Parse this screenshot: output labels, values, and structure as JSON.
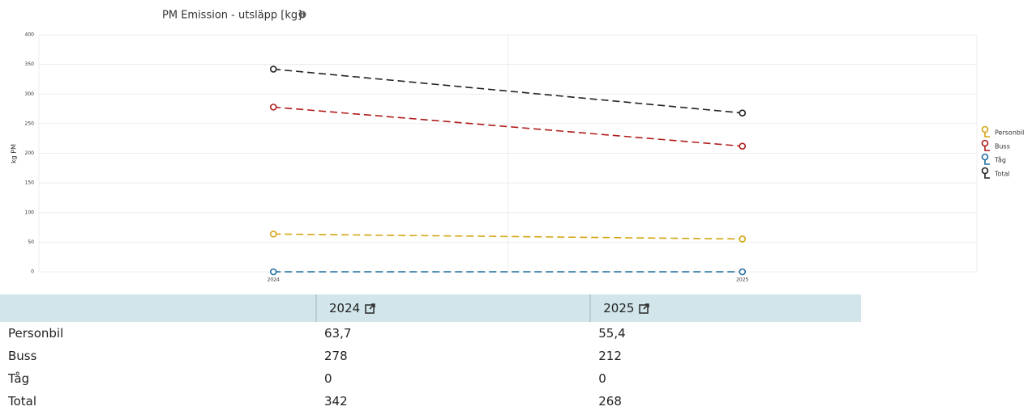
{
  "chart_data": {
    "type": "line",
    "title": "PM Emission - utsläpp [kg]",
    "ylabel": "kg PM",
    "categories": [
      "2024",
      "2025"
    ],
    "series": [
      {
        "name": "Personbil",
        "color": "#d4a514",
        "values": [
          63.7,
          55.4
        ]
      },
      {
        "name": "Buss",
        "color": "#b01c1c",
        "values": [
          278,
          212
        ]
      },
      {
        "name": "Tåg",
        "color": "#1f6f9e",
        "values": [
          0,
          0
        ]
      },
      {
        "name": "Total",
        "color": "#222222",
        "values": [
          342,
          268
        ]
      }
    ],
    "ylim": [
      0,
      400
    ],
    "yticks": [
      0,
      50,
      100,
      150,
      200,
      250,
      300,
      350,
      400
    ],
    "grid": true,
    "dashed": true,
    "legend": "right"
  },
  "table": {
    "header": [
      "2024",
      "2025"
    ],
    "rows": [
      [
        "Personbil",
        "63,7",
        "55,4"
      ],
      [
        "Buss",
        "278",
        "212"
      ],
      [
        "Tåg",
        "0",
        "0"
      ],
      [
        "Total",
        "342",
        "268"
      ]
    ]
  }
}
